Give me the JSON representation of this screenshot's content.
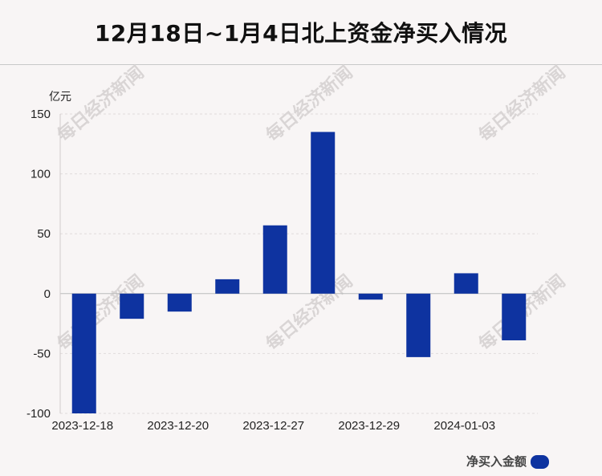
{
  "title": "12月18日~1月4日北上资金净买入情况",
  "chart_data": {
    "type": "bar",
    "ylabel": "亿元",
    "ylim": [
      -100,
      150
    ],
    "yticks": [
      150,
      100,
      50,
      0,
      -50,
      -100
    ],
    "grid": true,
    "x_tick_labels": [
      "2023-12-18",
      "2023-12-20",
      "2023-12-27",
      "2023-12-29",
      "2024-01-03"
    ],
    "series": [
      {
        "name": "净买入金额",
        "color": "#0e33a0",
        "values": [
          -100,
          -21,
          -15,
          12,
          57,
          135,
          -5,
          -53,
          17,
          -39
        ]
      }
    ],
    "legend": "bottom-right"
  },
  "watermark": "每日经济新闻"
}
